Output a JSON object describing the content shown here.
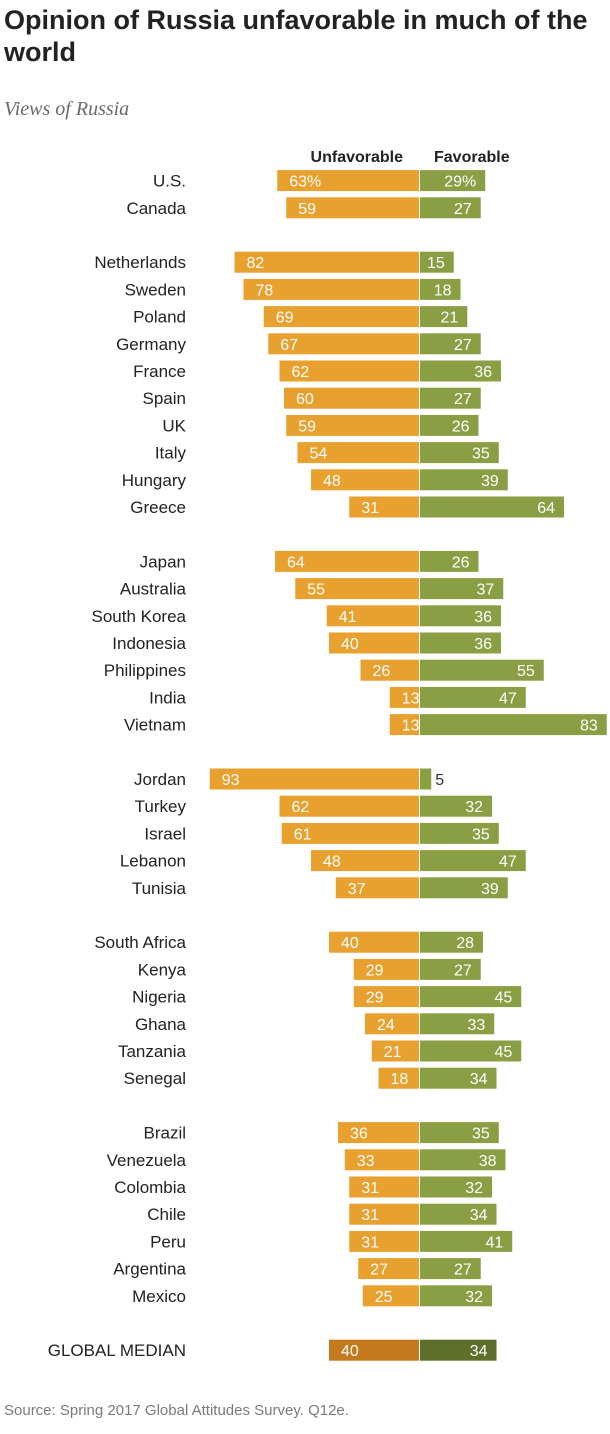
{
  "chart_data": {
    "type": "bar",
    "orientation": "horizontal-diverging",
    "title": "Opinion of Russia unfavorable in much of the world",
    "subtitle": "Views of Russia",
    "source": "Source: Spring 2017 Global Attitudes Survey. Q12e.",
    "legend": [
      "Unfavorable",
      "Favorable"
    ],
    "colors": {
      "unfavorable": "#e8a02f",
      "favorable": "#8a9e43",
      "median_unfavorable": "#c47a1c",
      "median_favorable": "#5e6f2c"
    },
    "groups": [
      {
        "rows": [
          {
            "country": "U.S.",
            "unfavorable": 63,
            "favorable": 29,
            "unf_label": "63%",
            "fav_label": "29%"
          },
          {
            "country": "Canada",
            "unfavorable": 59,
            "favorable": 27,
            "unf_label": "59",
            "fav_label": "27"
          }
        ]
      },
      {
        "rows": [
          {
            "country": "Netherlands",
            "unfavorable": 82,
            "favorable": 15,
            "unf_label": "82",
            "fav_label": "15"
          },
          {
            "country": "Sweden",
            "unfavorable": 78,
            "favorable": 18,
            "unf_label": "78",
            "fav_label": "18"
          },
          {
            "country": "Poland",
            "unfavorable": 69,
            "favorable": 21,
            "unf_label": "69",
            "fav_label": "21"
          },
          {
            "country": "Germany",
            "unfavorable": 67,
            "favorable": 27,
            "unf_label": "67",
            "fav_label": "27"
          },
          {
            "country": "France",
            "unfavorable": 62,
            "favorable": 36,
            "unf_label": "62",
            "fav_label": "36"
          },
          {
            "country": "Spain",
            "unfavorable": 60,
            "favorable": 27,
            "unf_label": "60",
            "fav_label": "27"
          },
          {
            "country": "UK",
            "unfavorable": 59,
            "favorable": 26,
            "unf_label": "59",
            "fav_label": "26"
          },
          {
            "country": "Italy",
            "unfavorable": 54,
            "favorable": 35,
            "unf_label": "54",
            "fav_label": "35"
          },
          {
            "country": "Hungary",
            "unfavorable": 48,
            "favorable": 39,
            "unf_label": "48",
            "fav_label": "39"
          },
          {
            "country": "Greece",
            "unfavorable": 31,
            "favorable": 64,
            "unf_label": "31",
            "fav_label": "64"
          }
        ]
      },
      {
        "rows": [
          {
            "country": "Japan",
            "unfavorable": 64,
            "favorable": 26,
            "unf_label": "64",
            "fav_label": "26"
          },
          {
            "country": "Australia",
            "unfavorable": 55,
            "favorable": 37,
            "unf_label": "55",
            "fav_label": "37"
          },
          {
            "country": "South Korea",
            "unfavorable": 41,
            "favorable": 36,
            "unf_label": "41",
            "fav_label": "36"
          },
          {
            "country": "Indonesia",
            "unfavorable": 40,
            "favorable": 36,
            "unf_label": "40",
            "fav_label": "36"
          },
          {
            "country": "Philippines",
            "unfavorable": 26,
            "favorable": 55,
            "unf_label": "26",
            "fav_label": "55"
          },
          {
            "country": "India",
            "unfavorable": 13,
            "favorable": 47,
            "unf_label": "13",
            "fav_label": "47"
          },
          {
            "country": "Vietnam",
            "unfavorable": 13,
            "favorable": 83,
            "unf_label": "13",
            "fav_label": "83"
          }
        ]
      },
      {
        "rows": [
          {
            "country": "Jordan",
            "unfavorable": 93,
            "favorable": 5,
            "unf_label": "93",
            "fav_label": "5"
          },
          {
            "country": "Turkey",
            "unfavorable": 62,
            "favorable": 32,
            "unf_label": "62",
            "fav_label": "32"
          },
          {
            "country": "Israel",
            "unfavorable": 61,
            "favorable": 35,
            "unf_label": "61",
            "fav_label": "35"
          },
          {
            "country": "Lebanon",
            "unfavorable": 48,
            "favorable": 47,
            "unf_label": "48",
            "fav_label": "47"
          },
          {
            "country": "Tunisia",
            "unfavorable": 37,
            "favorable": 39,
            "unf_label": "37",
            "fav_label": "39"
          }
        ]
      },
      {
        "rows": [
          {
            "country": "South Africa",
            "unfavorable": 40,
            "favorable": 28,
            "unf_label": "40",
            "fav_label": "28"
          },
          {
            "country": "Kenya",
            "unfavorable": 29,
            "favorable": 27,
            "unf_label": "29",
            "fav_label": "27"
          },
          {
            "country": "Nigeria",
            "unfavorable": 29,
            "favorable": 45,
            "unf_label": "29",
            "fav_label": "45"
          },
          {
            "country": "Ghana",
            "unfavorable": 24,
            "favorable": 33,
            "unf_label": "24",
            "fav_label": "33"
          },
          {
            "country": "Tanzania",
            "unfavorable": 21,
            "favorable": 45,
            "unf_label": "21",
            "fav_label": "45"
          },
          {
            "country": "Senegal",
            "unfavorable": 18,
            "favorable": 34,
            "unf_label": "18",
            "fav_label": "34"
          }
        ]
      },
      {
        "rows": [
          {
            "country": "Brazil",
            "unfavorable": 36,
            "favorable": 35,
            "unf_label": "36",
            "fav_label": "35"
          },
          {
            "country": "Venezuela",
            "unfavorable": 33,
            "favorable": 38,
            "unf_label": "33",
            "fav_label": "38"
          },
          {
            "country": "Colombia",
            "unfavorable": 31,
            "favorable": 32,
            "unf_label": "31",
            "fav_label": "32"
          },
          {
            "country": "Chile",
            "unfavorable": 31,
            "favorable": 34,
            "unf_label": "31",
            "fav_label": "34"
          },
          {
            "country": "Peru",
            "unfavorable": 31,
            "favorable": 41,
            "unf_label": "31",
            "fav_label": "41"
          },
          {
            "country": "Argentina",
            "unfavorable": 27,
            "favorable": 27,
            "unf_label": "27",
            "fav_label": "27"
          },
          {
            "country": "Mexico",
            "unfavorable": 25,
            "favorable": 32,
            "unf_label": "25",
            "fav_label": "32"
          }
        ]
      },
      {
        "median": true,
        "rows": [
          {
            "country": "GLOBAL MEDIAN",
            "unfavorable": 40,
            "favorable": 34,
            "unf_label": "40",
            "fav_label": "34"
          }
        ]
      }
    ]
  }
}
